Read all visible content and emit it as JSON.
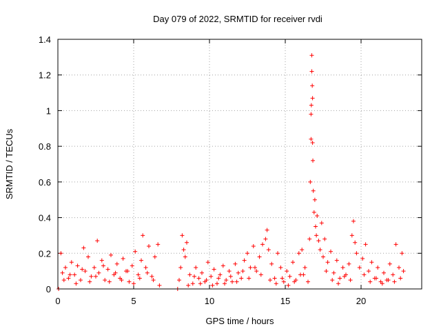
{
  "chart_data": {
    "type": "scatter",
    "title": "Day 079 of 2022, SRMTID for receiver rvdi",
    "xlabel": "GPS time / hours",
    "ylabel": "SRMTID / TECUs",
    "xlim": [
      0,
      24
    ],
    "ylim": [
      0,
      1.4
    ],
    "x_ticks": [
      0,
      5,
      10,
      15,
      20
    ],
    "x_tick_labels": [
      "0",
      "5",
      "10",
      "15",
      "20"
    ],
    "y_ticks": [
      0,
      0.2,
      0.4,
      0.6,
      0.8,
      1.0,
      1.2,
      1.4
    ],
    "y_tick_labels": [
      "0",
      "0.2",
      "0.4",
      "0.6",
      "0.8",
      "1",
      "1.2",
      "1.4"
    ],
    "grid": true,
    "marker": "+",
    "color": "#ff0000",
    "series": [
      {
        "name": "SRMTID",
        "x": [
          0.05,
          0.2,
          0.3,
          0.5,
          0.7,
          0.9,
          1.1,
          1.3,
          1.5,
          1.7,
          1.8,
          2.0,
          2.2,
          2.4,
          2.6,
          2.7,
          2.9,
          3.1,
          3.3,
          3.5,
          3.7,
          3.9,
          4.1,
          4.3,
          4.5,
          4.7,
          4.9,
          5.1,
          5.3,
          5.5,
          5.6,
          5.8,
          6.0,
          6.2,
          6.4,
          6.6,
          6.7,
          7.9,
          8.0,
          8.1,
          8.2,
          8.3,
          8.4,
          8.5,
          8.7,
          8.9,
          9.1,
          9.3,
          9.5,
          9.7,
          9.9,
          10.1,
          10.3,
          10.5,
          10.7,
          10.9,
          11.1,
          11.3,
          11.5,
          11.7,
          11.9,
          12.1,
          12.3,
          12.5,
          12.7,
          12.9,
          13.1,
          13.3,
          13.5,
          13.7,
          13.8,
          13.9,
          14.1,
          14.3,
          14.5,
          14.7,
          14.9,
          15.1,
          15.3,
          15.5,
          15.7,
          15.9,
          16.0,
          16.1,
          16.3,
          16.5,
          16.6,
          16.65,
          16.7,
          16.7,
          16.72,
          16.75,
          16.75,
          16.78,
          16.8,
          16.8,
          16.82,
          16.85,
          16.9,
          16.95,
          17.0,
          17.05,
          17.1,
          17.2,
          17.3,
          17.4,
          17.5,
          17.6,
          17.8,
          18.0,
          18.2,
          18.4,
          18.6,
          18.8,
          19.0,
          19.2,
          19.4,
          19.5,
          19.6,
          19.7,
          19.9,
          20.1,
          20.3,
          20.5,
          20.7,
          20.9,
          21.1,
          21.3,
          21.5,
          21.7,
          21.9,
          22.1,
          22.3,
          22.5,
          22.7,
          22.8,
          0.4,
          0.8,
          1.2,
          1.6,
          2.1,
          2.5,
          3.0,
          3.4,
          3.8,
          4.2,
          4.6,
          5.0,
          5.4,
          5.9,
          6.3,
          8.6,
          9.0,
          9.4,
          9.8,
          10.2,
          10.6,
          11.0,
          11.4,
          11.8,
          12.2,
          12.6,
          13.0,
          13.4,
          14.0,
          14.4,
          14.8,
          15.2,
          15.6,
          16.2,
          17.7,
          18.1,
          18.5,
          18.9,
          19.3,
          20.2,
          20.6,
          21.0,
          21.4,
          21.8,
          22.2,
          22.6
        ],
        "y": [
          0.0,
          0.2,
          0.09,
          0.12,
          0.06,
          0.15,
          0.08,
          0.13,
          0.05,
          0.23,
          0.1,
          0.18,
          0.07,
          0.12,
          0.27,
          0.09,
          0.16,
          0.05,
          0.11,
          0.19,
          0.08,
          0.14,
          0.06,
          0.17,
          0.1,
          0.04,
          0.13,
          0.21,
          0.08,
          0.16,
          0.3,
          0.12,
          0.24,
          0.07,
          0.18,
          0.25,
          0.02,
          0.0,
          0.05,
          0.12,
          0.3,
          0.22,
          0.18,
          0.26,
          0.08,
          0.03,
          0.12,
          0.06,
          0.09,
          0.04,
          0.15,
          0.07,
          0.11,
          0.03,
          0.08,
          0.13,
          0.05,
          0.1,
          0.04,
          0.14,
          0.09,
          0.06,
          0.16,
          0.2,
          0.12,
          0.24,
          0.1,
          0.18,
          0.25,
          0.28,
          0.33,
          0.22,
          0.14,
          0.06,
          0.2,
          0.12,
          0.04,
          0.1,
          0.07,
          0.15,
          0.05,
          0.2,
          0.08,
          0.22,
          0.12,
          0.04,
          0.28,
          0.6,
          0.84,
          0.98,
          1.03,
          1.22,
          1.31,
          1.14,
          0.82,
          1.07,
          0.72,
          0.55,
          0.43,
          0.5,
          0.35,
          0.3,
          0.41,
          0.27,
          0.22,
          0.37,
          0.18,
          0.28,
          0.15,
          0.21,
          0.09,
          0.16,
          0.06,
          0.12,
          0.08,
          0.14,
          0.3,
          0.38,
          0.26,
          0.2,
          0.12,
          0.17,
          0.25,
          0.1,
          0.15,
          0.06,
          0.12,
          0.04,
          0.09,
          0.05,
          0.14,
          0.08,
          0.25,
          0.12,
          0.2,
          0.1,
          0.05,
          0.08,
          0.03,
          0.11,
          0.04,
          0.07,
          0.13,
          0.04,
          0.09,
          0.05,
          0.1,
          0.03,
          0.06,
          0.09,
          0.05,
          0.02,
          0.07,
          0.03,
          0.05,
          0.02,
          0.06,
          0.03,
          0.07,
          0.04,
          0.1,
          0.06,
          0.12,
          0.08,
          0.05,
          0.03,
          0.06,
          0.02,
          0.04,
          0.08,
          0.1,
          0.05,
          0.03,
          0.07,
          0.05,
          0.08,
          0.04,
          0.06,
          0.03,
          0.05,
          0.04,
          0.06
        ]
      }
    ]
  }
}
